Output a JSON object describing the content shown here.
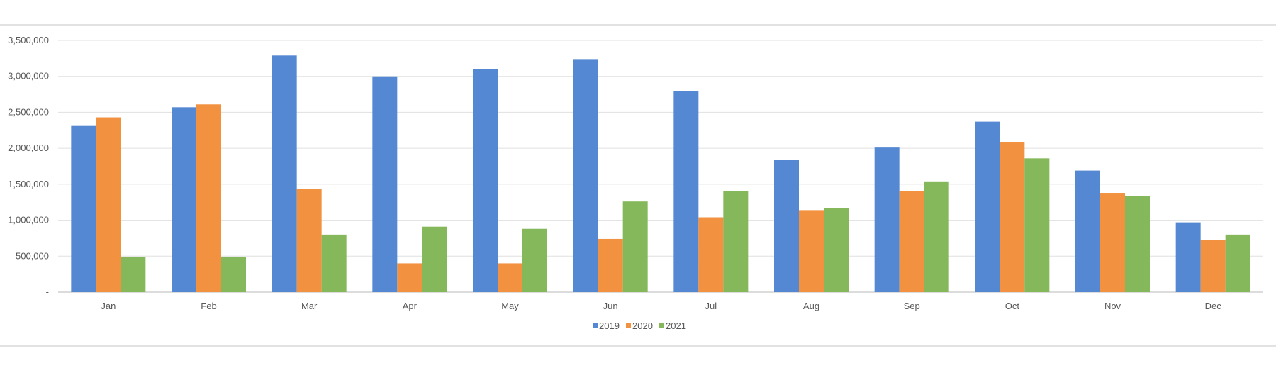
{
  "chart_data": {
    "type": "bar",
    "title": "",
    "xlabel": "",
    "ylabel": "",
    "ylim": [
      0,
      3500000
    ],
    "yticks": [
      0,
      500000,
      1000000,
      1500000,
      2000000,
      2500000,
      3000000,
      3500000
    ],
    "ytick_labels": [
      "-",
      "500,000",
      "1,000,000",
      "1,500,000",
      "2,000,000",
      "2,500,000",
      "3,000,000",
      "3,500,000"
    ],
    "grid": true,
    "legend_position": "bottom",
    "categories": [
      "Jan",
      "Feb",
      "Mar",
      "Apr",
      "May",
      "Jun",
      "Jul",
      "Aug",
      "Sep",
      "Oct",
      "Nov",
      "Dec"
    ],
    "series": [
      {
        "name": "2019",
        "color": "#5588d2",
        "values": [
          2320000,
          2570000,
          3290000,
          3000000,
          3100000,
          3240000,
          2800000,
          1840000,
          2010000,
          2370000,
          1690000,
          970000
        ]
      },
      {
        "name": "2020",
        "color": "#f29240",
        "values": [
          2430000,
          2610000,
          1430000,
          400000,
          400000,
          740000,
          1040000,
          1140000,
          1400000,
          2090000,
          1380000,
          720000
        ]
      },
      {
        "name": "2021",
        "color": "#84b85a",
        "values": [
          490000,
          490000,
          800000,
          910000,
          880000,
          1260000,
          1400000,
          1170000,
          1540000,
          1860000,
          1340000,
          800000
        ]
      }
    ]
  }
}
